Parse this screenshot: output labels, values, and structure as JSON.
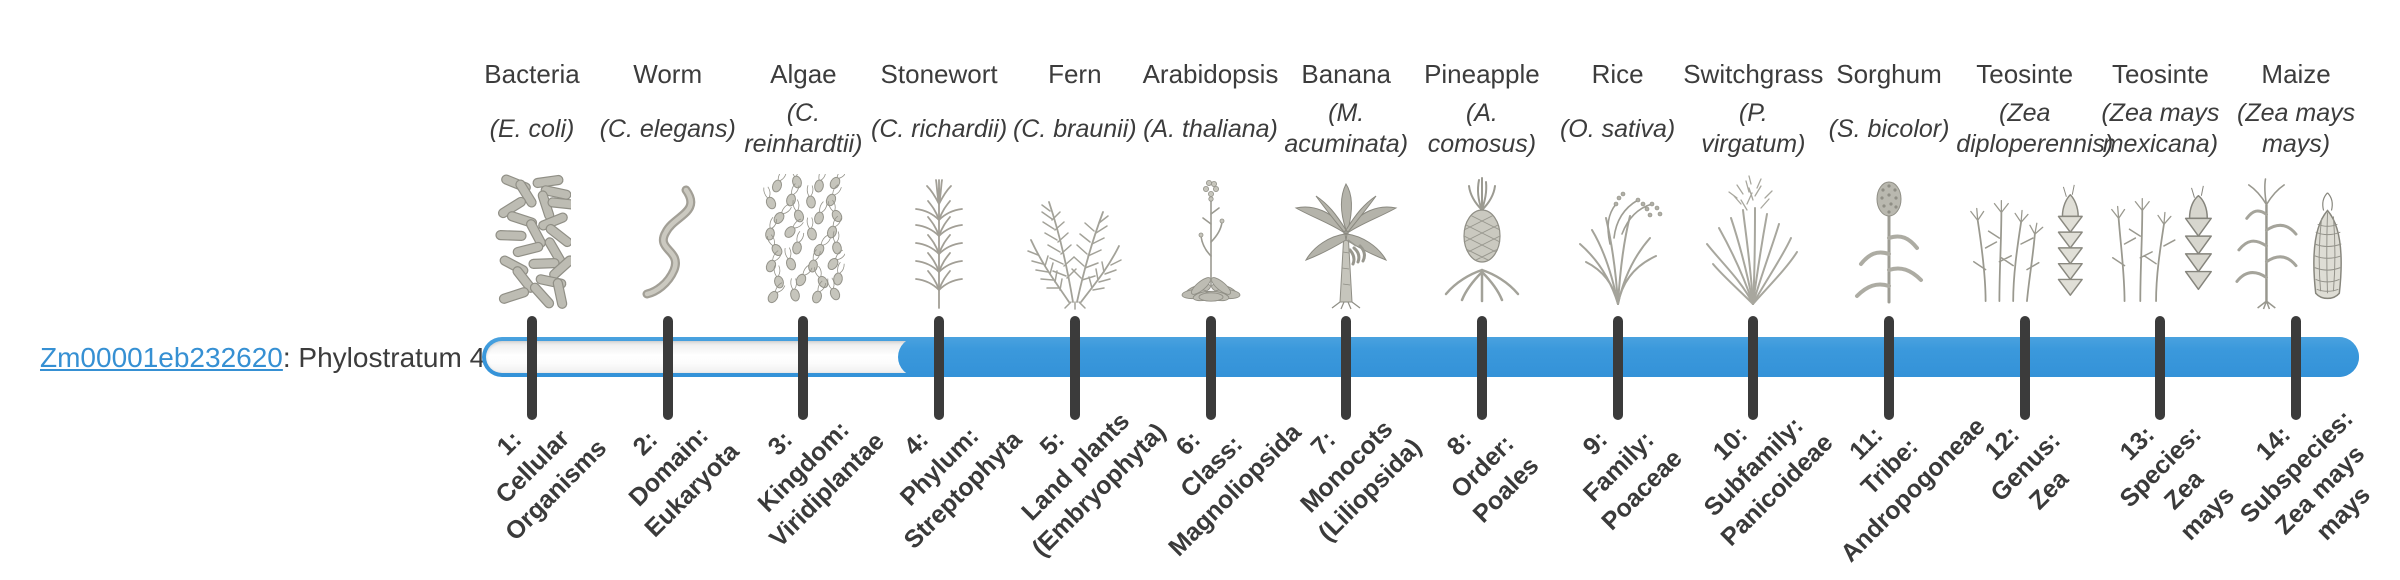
{
  "gene": {
    "id": "Zm00001eb232620",
    "suffix": ": Phylostratum 4",
    "phylostratum": 4
  },
  "bar": {
    "total_stages": 14,
    "filled_from_stage": 4
  },
  "colors": {
    "bar_blue": "#3B99DC",
    "link_blue": "#3690D3",
    "tick_dark": "#3B3B3B",
    "text_dark": "#3C3C3C",
    "illustration_gray": "#ADACA4"
  },
  "organisms": [
    {
      "stage": 1,
      "name": "Bacteria",
      "species": "(E. coli)",
      "icon": "bacteria-icon",
      "stage_label": "1:\nCellular\nOrganisms"
    },
    {
      "stage": 2,
      "name": "Worm",
      "species": "(C. elegans)",
      "icon": "worm-icon",
      "stage_label": "2:\nDomain:\nEukaryota"
    },
    {
      "stage": 3,
      "name": "Algae",
      "species": "(C. reinhardtii)",
      "icon": "algae-icon",
      "stage_label": "3:\nKingdom:\nViridiplantae"
    },
    {
      "stage": 4,
      "name": "Stonewort",
      "species": "(C. richardii)",
      "icon": "stonewort-icon",
      "stage_label": "4:\nPhylum:\nStreptophyta"
    },
    {
      "stage": 5,
      "name": "Fern",
      "species": "(C. braunii)",
      "icon": "fern-icon",
      "stage_label": "5:\nLand plants\n(Embryophyta)"
    },
    {
      "stage": 6,
      "name": "Arabidopsis",
      "species": "(A. thaliana)",
      "icon": "arabidopsis-icon",
      "stage_label": "6:\nClass:\nMagnoliopsida"
    },
    {
      "stage": 7,
      "name": "Banana",
      "species": "(M. acuminata)",
      "icon": "banana-icon",
      "stage_label": "7:\nMonocots\n(Liliopsida)"
    },
    {
      "stage": 8,
      "name": "Pineapple",
      "species": "(A. comosus)",
      "icon": "pineapple-icon",
      "stage_label": "8:\nOrder:\nPoales"
    },
    {
      "stage": 9,
      "name": "Rice",
      "species": "(O. sativa)",
      "icon": "rice-icon",
      "stage_label": "9:\nFamily:\nPoaceae"
    },
    {
      "stage": 10,
      "name": "Switchgrass",
      "species": "(P. virgatum)",
      "icon": "switchgrass-icon",
      "stage_label": "10:\nSubfamily:\nPanicoideae"
    },
    {
      "stage": 11,
      "name": "Sorghum",
      "species": "(S. bicolor)",
      "icon": "sorghum-icon",
      "stage_label": "11:\nTribe:\nAndropogoneae"
    },
    {
      "stage": 12,
      "name": "Teosinte",
      "species": "(Zea diploperennis)",
      "icon": "teosinte-diploperennis-icon",
      "stage_label": "12:\nGenus:\nZea"
    },
    {
      "stage": 13,
      "name": "Teosinte",
      "species": "(Zea mays mexicana)",
      "icon": "teosinte-mexicana-icon",
      "stage_label": "13:\nSpecies:\nZea\nmays"
    },
    {
      "stage": 14,
      "name": "Maize",
      "species": "(Zea mays mays)",
      "icon": "maize-icon",
      "stage_label": "14:\nSubspecies:\nZea mays\nmays"
    }
  ]
}
